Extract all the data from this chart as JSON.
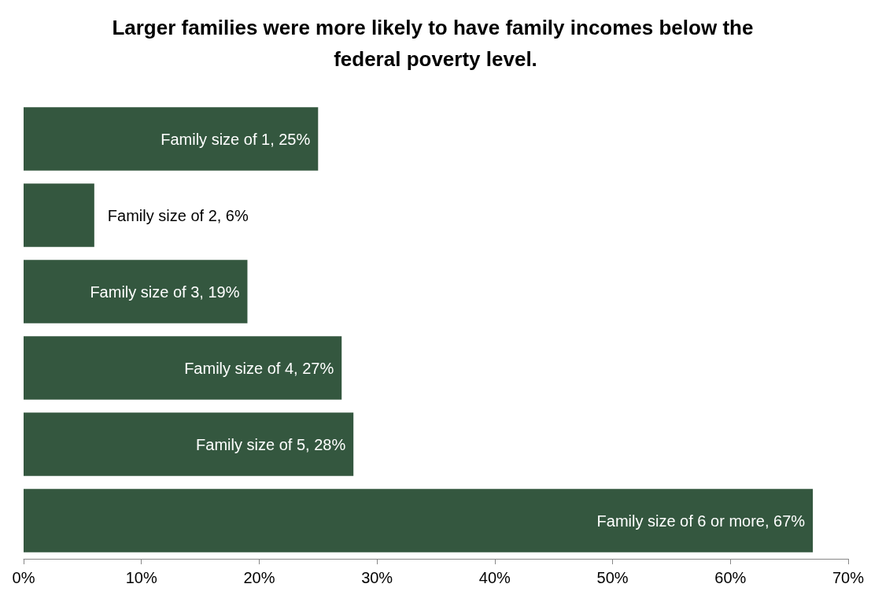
{
  "chart_data": {
    "type": "bar",
    "orientation": "horizontal",
    "title": "Larger families were more likely to have family incomes below the federal poverty level.",
    "categories": [
      null,
      null,
      null,
      null,
      null,
      null
    ],
    "values": [
      25,
      6,
      19,
      27,
      28,
      67
    ],
    "value_labels": [
      "Family size of 1, 25%",
      "Family size of 2, 6%",
      "Family size of 3, 19%",
      "Family size of 4, 27%",
      "Family size of 5, 28%",
      "Family size of 6 or more, 67%"
    ],
    "color": "#34573f",
    "xlim": [
      0,
      70
    ],
    "xticks": [
      {
        "value": 0,
        "label": "0%"
      },
      {
        "value": 10,
        "label": "10%"
      },
      {
        "value": 20,
        "label": "20%"
      },
      {
        "value": 30,
        "label": "30%"
      },
      {
        "value": 40,
        "label": "40%"
      },
      {
        "value": 50,
        "label": "50%"
      },
      {
        "value": 60,
        "label": "60%"
      },
      {
        "value": 70,
        "label": "70%"
      }
    ],
    "tick_labels": "x",
    "grid": false
  }
}
